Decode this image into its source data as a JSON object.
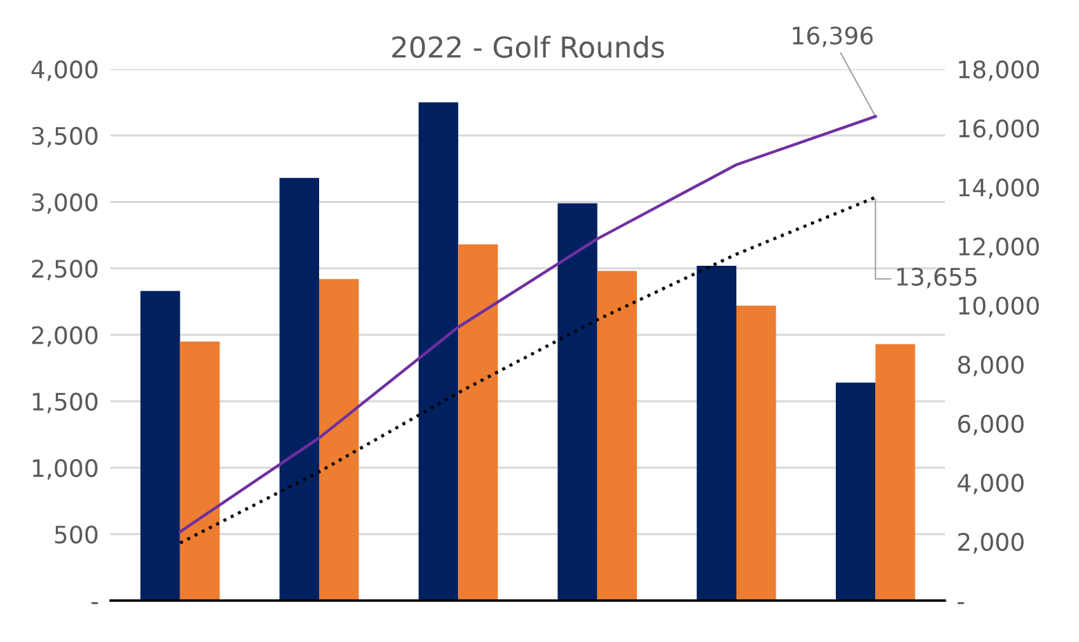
{
  "chart_data": {
    "type": "bar",
    "title": "2022 - Golf Rounds",
    "categories": [
      null,
      null,
      null,
      null,
      null,
      null
    ],
    "series": [
      {
        "color": "#002060",
        "values": [
          2330,
          3180,
          3750,
          2990,
          2520,
          1640
        ]
      },
      {
        "color": "#ed7d31",
        "values": [
          1950,
          2420,
          2680,
          2480,
          2220,
          1930
        ]
      },
      {
        "type": "line",
        "axis": "y2",
        "color": "#7030a0",
        "line_style": "solid",
        "values": [
          2330,
          5510,
          9260,
          12250,
          14760,
          16396
        ],
        "value_labels": [
          null,
          null,
          null,
          null,
          null,
          "16,396"
        ]
      },
      {
        "type": "line",
        "axis": "y2",
        "color": "#000000",
        "line_style": "dotted",
        "values": [
          1950,
          4360,
          7040,
          9510,
          11730,
          13655
        ],
        "value_labels": [
          null,
          null,
          null,
          null,
          null,
          "13,655"
        ]
      }
    ],
    "ylim": [
      0,
      4000
    ],
    "yticks": [
      {
        "value": 0,
        "label": "-"
      },
      {
        "value": 500,
        "label": "500"
      },
      {
        "value": 1000,
        "label": "1,000"
      },
      {
        "value": 1500,
        "label": "1,500"
      },
      {
        "value": 2000,
        "label": "2,000"
      },
      {
        "value": 2500,
        "label": "2,500"
      },
      {
        "value": 3000,
        "label": "3,000"
      },
      {
        "value": 3500,
        "label": "3,500"
      },
      {
        "value": 4000,
        "label": "4,000"
      }
    ],
    "y2lim": [
      0,
      18000
    ],
    "y2ticks": [
      {
        "value": 0,
        "label": "-"
      },
      {
        "value": 2000,
        "label": "2,000"
      },
      {
        "value": 4000,
        "label": "4,000"
      },
      {
        "value": 6000,
        "label": "6,000"
      },
      {
        "value": 8000,
        "label": "8,000"
      },
      {
        "value": 10000,
        "label": "10,000"
      },
      {
        "value": 12000,
        "label": "12,000"
      },
      {
        "value": 14000,
        "label": "14,000"
      },
      {
        "value": 16000,
        "label": "16,000"
      },
      {
        "value": 18000,
        "label": "18,000"
      }
    ],
    "grid": "y",
    "legend": false,
    "marker": "none"
  }
}
